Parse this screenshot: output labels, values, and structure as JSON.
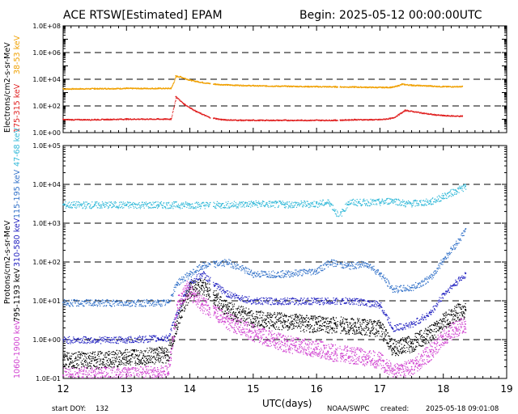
{
  "header": {
    "title": "ACE RTSW[Estimated] EPAM",
    "begin": "Begin: 2025-05-12 00:00:00UTC"
  },
  "footer": {
    "start_doy_label": "start DOY:",
    "start_doy_value": "132",
    "xlabel": "UTC(days)",
    "source": "NOAA/SWPC",
    "created_label": "created:",
    "created_value": "2025-05-18 09:01:08"
  },
  "colors": {
    "e_38_53": "#f0a000",
    "e_175_315": "#e02020",
    "p_47_68": "#30b8d8",
    "p_115_195": "#3070c8",
    "p_310_580": "#2020c0",
    "p_795_1193": "#000000",
    "p_1060_1900": "#d040d0"
  },
  "chart_data": [
    {
      "type": "scatter",
      "panel": "electrons",
      "ylabel": "Electrons/cm2-s-sr-MeV",
      "yscale": "log",
      "ylim": [
        1,
        100000000
      ],
      "yticks": [
        "1.0E+00",
        "1.0E+02",
        "1.0E+04",
        "1.0E+06",
        "1.0E+08"
      ],
      "xlim": [
        12,
        19
      ],
      "xticks": [
        "12",
        "13",
        "14",
        "15",
        "16",
        "17",
        "18",
        "19"
      ],
      "dashed_levels": [
        100,
        10000,
        1000000
      ],
      "series": [
        {
          "name": "38-53 keV",
          "color": "#f0a000",
          "x": [
            12.0,
            12.5,
            13.0,
            13.5,
            13.7,
            13.78,
            13.85,
            14.0,
            14.2,
            14.4,
            14.6,
            15.0,
            15.5,
            16.0,
            16.3,
            16.6,
            17.0,
            17.2,
            17.35,
            17.5,
            17.8,
            18.0,
            18.3
          ],
          "y": [
            2000,
            2100,
            2200,
            2200,
            2200,
            18000,
            16000,
            9000,
            6000,
            4500,
            4000,
            3500,
            3200,
            3000,
            2900,
            2800,
            2600,
            2700,
            4500,
            3800,
            3300,
            3000,
            3000
          ]
        },
        {
          "name": "175-315 keV",
          "color": "#e02020",
          "x": [
            12.0,
            12.5,
            13.0,
            13.5,
            13.7,
            13.78,
            13.9,
            14.1,
            14.3,
            14.5,
            14.8,
            15.0,
            15.5,
            16.0,
            16.3,
            16.6,
            17.0,
            17.2,
            17.4,
            17.6,
            17.8,
            18.0,
            18.3
          ],
          "y": [
            10,
            10,
            11,
            11,
            11,
            500,
            150,
            40,
            15,
            10,
            9,
            9,
            9,
            9,
            9,
            10,
            10,
            13,
            50,
            35,
            25,
            20,
            18
          ]
        }
      ]
    },
    {
      "type": "scatter",
      "panel": "protons",
      "ylabel": "Protons/cm2-s-sr-MeV",
      "yscale": "log",
      "ylim": [
        0.1,
        100000
      ],
      "yticks": [
        "1.0E-01",
        "1.0E+00",
        "1.0E+01",
        "1.0E+02",
        "1.0E+03",
        "1.0E+04",
        "1.0E+05"
      ],
      "xlim": [
        12,
        19
      ],
      "xticks": [
        "12",
        "13",
        "14",
        "15",
        "16",
        "17",
        "18",
        "19"
      ],
      "dashed_levels": [
        1,
        10,
        100,
        1000,
        10000
      ],
      "series": [
        {
          "name": "47-68 keV",
          "color": "#30b8d8",
          "x": [
            12.0,
            12.5,
            13.0,
            13.5,
            14.0,
            14.5,
            15.0,
            15.5,
            16.0,
            16.2,
            16.35,
            16.5,
            17.0,
            17.2,
            17.4,
            17.8,
            18.0,
            18.2,
            18.35
          ],
          "y": [
            3000,
            3000,
            3000,
            3000,
            3000,
            3000,
            3200,
            3100,
            3200,
            3500,
            1500,
            3500,
            3500,
            4000,
            3200,
            3600,
            5000,
            7000,
            9000
          ]
        },
        {
          "name": "115-195 keV",
          "color": "#3070c8",
          "x": [
            12.0,
            12.5,
            13.0,
            13.5,
            13.65,
            13.8,
            14.0,
            14.2,
            14.4,
            14.6,
            15.0,
            15.5,
            16.0,
            16.2,
            16.5,
            16.8,
            17.0,
            17.2,
            17.5,
            17.8,
            18.0,
            18.2,
            18.35
          ],
          "y": [
            9,
            9,
            9,
            9,
            9,
            30,
            50,
            80,
            90,
            100,
            50,
            50,
            60,
            100,
            80,
            90,
            50,
            20,
            22,
            40,
            120,
            300,
            700
          ]
        },
        {
          "name": "310-580 keV",
          "color": "#2020c0",
          "x": [
            12.0,
            12.5,
            13.0,
            13.5,
            13.65,
            13.8,
            14.0,
            14.2,
            14.4,
            14.6,
            15.0,
            15.5,
            16.0,
            16.3,
            16.6,
            17.0,
            17.2,
            17.5,
            17.8,
            18.0,
            18.2,
            18.35
          ],
          "y": [
            1,
            1,
            1,
            1.1,
            1.1,
            5,
            30,
            50,
            25,
            15,
            10,
            10,
            10,
            10,
            10,
            8,
            2,
            2.5,
            5,
            15,
            30,
            50
          ]
        },
        {
          "name": "795-1193 keV",
          "color": "#000000",
          "x": [
            12.0,
            12.5,
            13.0,
            13.5,
            13.65,
            13.8,
            14.0,
            14.2,
            14.4,
            14.6,
            15.0,
            15.5,
            16.0,
            16.3,
            16.6,
            17.0,
            17.2,
            17.5,
            17.8,
            18.0,
            18.2,
            18.35
          ],
          "y": [
            0.3,
            0.3,
            0.35,
            0.4,
            0.4,
            3,
            20,
            25,
            12,
            6,
            3.5,
            3,
            2.5,
            2.5,
            2.2,
            2,
            0.6,
            0.8,
            1.5,
            3,
            5,
            6
          ]
        },
        {
          "name": "1060-1900 keV",
          "color": "#d040d0",
          "x": [
            12.0,
            12.5,
            13.0,
            13.5,
            13.65,
            13.8,
            13.95,
            14.2,
            14.4,
            14.6,
            15.0,
            15.5,
            16.0,
            16.3,
            16.6,
            17.0,
            17.2,
            17.5,
            17.8,
            18.0,
            18.2,
            18.35
          ],
          "y": [
            0.12,
            0.12,
            0.12,
            0.13,
            0.13,
            8,
            20,
            8,
            5,
            3,
            1.5,
            0.8,
            0.6,
            0.45,
            0.4,
            0.3,
            0.15,
            0.2,
            0.5,
            1.2,
            2,
            2.5
          ]
        }
      ]
    }
  ]
}
